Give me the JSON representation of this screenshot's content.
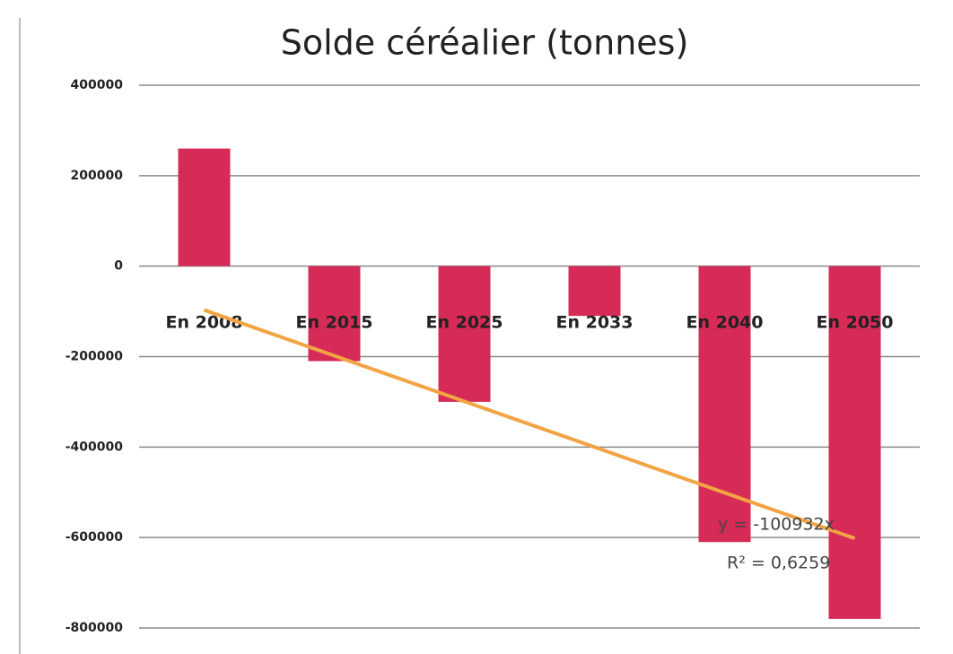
{
  "chart_data": {
    "type": "bar",
    "title": "Solde céréalier (tonnes)",
    "categories": [
      "En 2008",
      "En 2015",
      "En 2025",
      "En 2033",
      "En 2040",
      "En 2050"
    ],
    "values": [
      260000,
      -210000,
      -300000,
      -110000,
      -610000,
      -780000
    ],
    "color": "#d62a57",
    "ylim": [
      -800000,
      400000
    ],
    "yticks": [
      -800000,
      -600000,
      -400000,
      -200000,
      0,
      200000,
      400000
    ],
    "grid": true,
    "trendline": {
      "color": "#f2a444",
      "start": -97000,
      "end": -602000,
      "equation": "y = -100932x",
      "r2": "R² = 0,6259"
    }
  }
}
